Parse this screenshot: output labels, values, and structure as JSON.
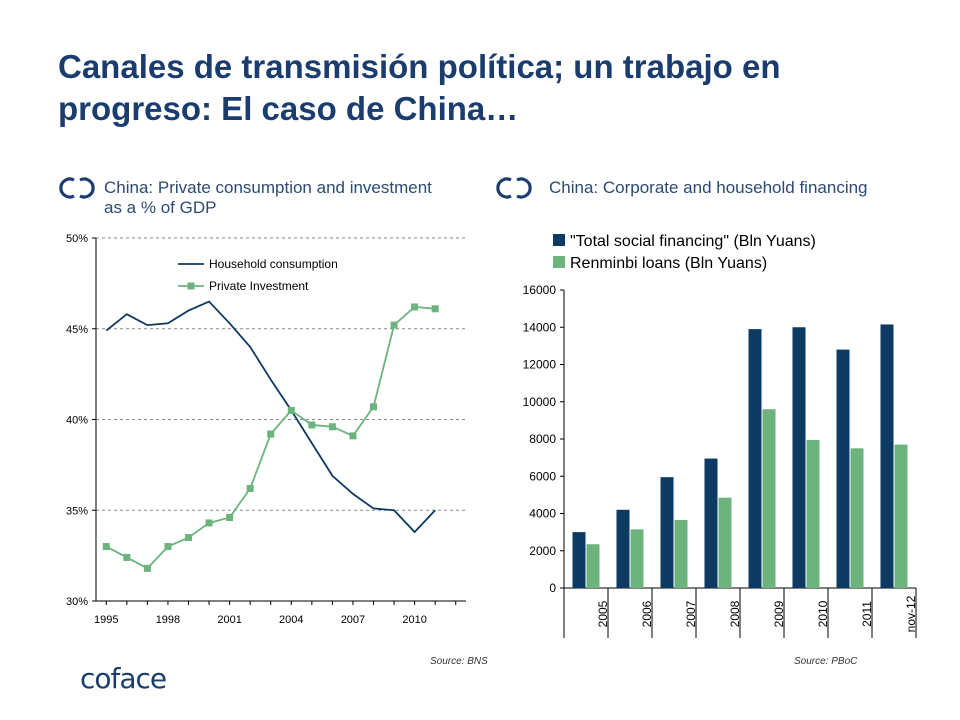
{
  "title": "Canales de transmisión política; un trabajo en progreso: El caso de China…",
  "logo_text": "coface",
  "colors": {
    "navy": "#0d3a63",
    "green": "#6cb37e",
    "title": "#1a3c6e",
    "accent_icon": "#1a3c6e"
  },
  "left_panel": {
    "subtitle": "China: Private consumption and investment as a % of GDP",
    "source": "Source: BNS",
    "icon": "coface-cc-icon"
  },
  "right_panel": {
    "subtitle": "China: Corporate and household financing",
    "source": "Source: PBoC",
    "icon": "coface-cc-icon"
  },
  "chart_data": [
    {
      "type": "line",
      "x": [
        1995,
        1996,
        1997,
        1998,
        1999,
        2000,
        2001,
        2002,
        2003,
        2004,
        2005,
        2006,
        2007,
        2008,
        2009,
        2010,
        2011
      ],
      "series": [
        {
          "name": "Household consumption",
          "color": "#0d3a63",
          "values": [
            44.9,
            45.8,
            45.2,
            45.3,
            46.0,
            46.5,
            45.3,
            44.0,
            42.2,
            40.5,
            38.7,
            36.9,
            35.9,
            35.1,
            35.0,
            33.8,
            35.0
          ]
        },
        {
          "name": "Private Investment",
          "color": "#6cb37e",
          "marker": "square",
          "values": [
            33.0,
            32.4,
            31.8,
            33.0,
            33.5,
            34.3,
            34.6,
            36.2,
            39.2,
            40.5,
            39.7,
            39.6,
            39.1,
            40.7,
            45.2,
            46.2,
            46.1
          ]
        }
      ],
      "ylim": [
        30,
        50
      ],
      "yticks": [
        "30%",
        "35%",
        "40%",
        "45%",
        "50%"
      ],
      "xticks": [
        "1995",
        "1998",
        "2001",
        "2004",
        "2007",
        "2010"
      ],
      "xlim": [
        1994.5,
        2012.5
      ],
      "grid": "horizontal dashed",
      "legend": "top-right"
    },
    {
      "type": "bar",
      "categories": [
        "2005",
        "2006",
        "2007",
        "2008",
        "2009",
        "2010",
        "2011",
        "nov-12"
      ],
      "series": [
        {
          "name": "\"Total social financing\" (Bln Yuans)",
          "color": "#0d3a63",
          "values": [
            3000,
            4200,
            5950,
            6950,
            13900,
            14000,
            12800,
            14150
          ]
        },
        {
          "name": "Renminbi loans (Bln Yuans)",
          "color": "#6cb37e",
          "values": [
            2350,
            3150,
            3650,
            4850,
            9600,
            7950,
            7500,
            7700
          ]
        }
      ],
      "ylim": [
        0,
        16000
      ],
      "yticks": [
        "0",
        "2000",
        "4000",
        "6000",
        "8000",
        "10000",
        "12000",
        "14000",
        "16000"
      ],
      "legend": "top-left"
    }
  ]
}
